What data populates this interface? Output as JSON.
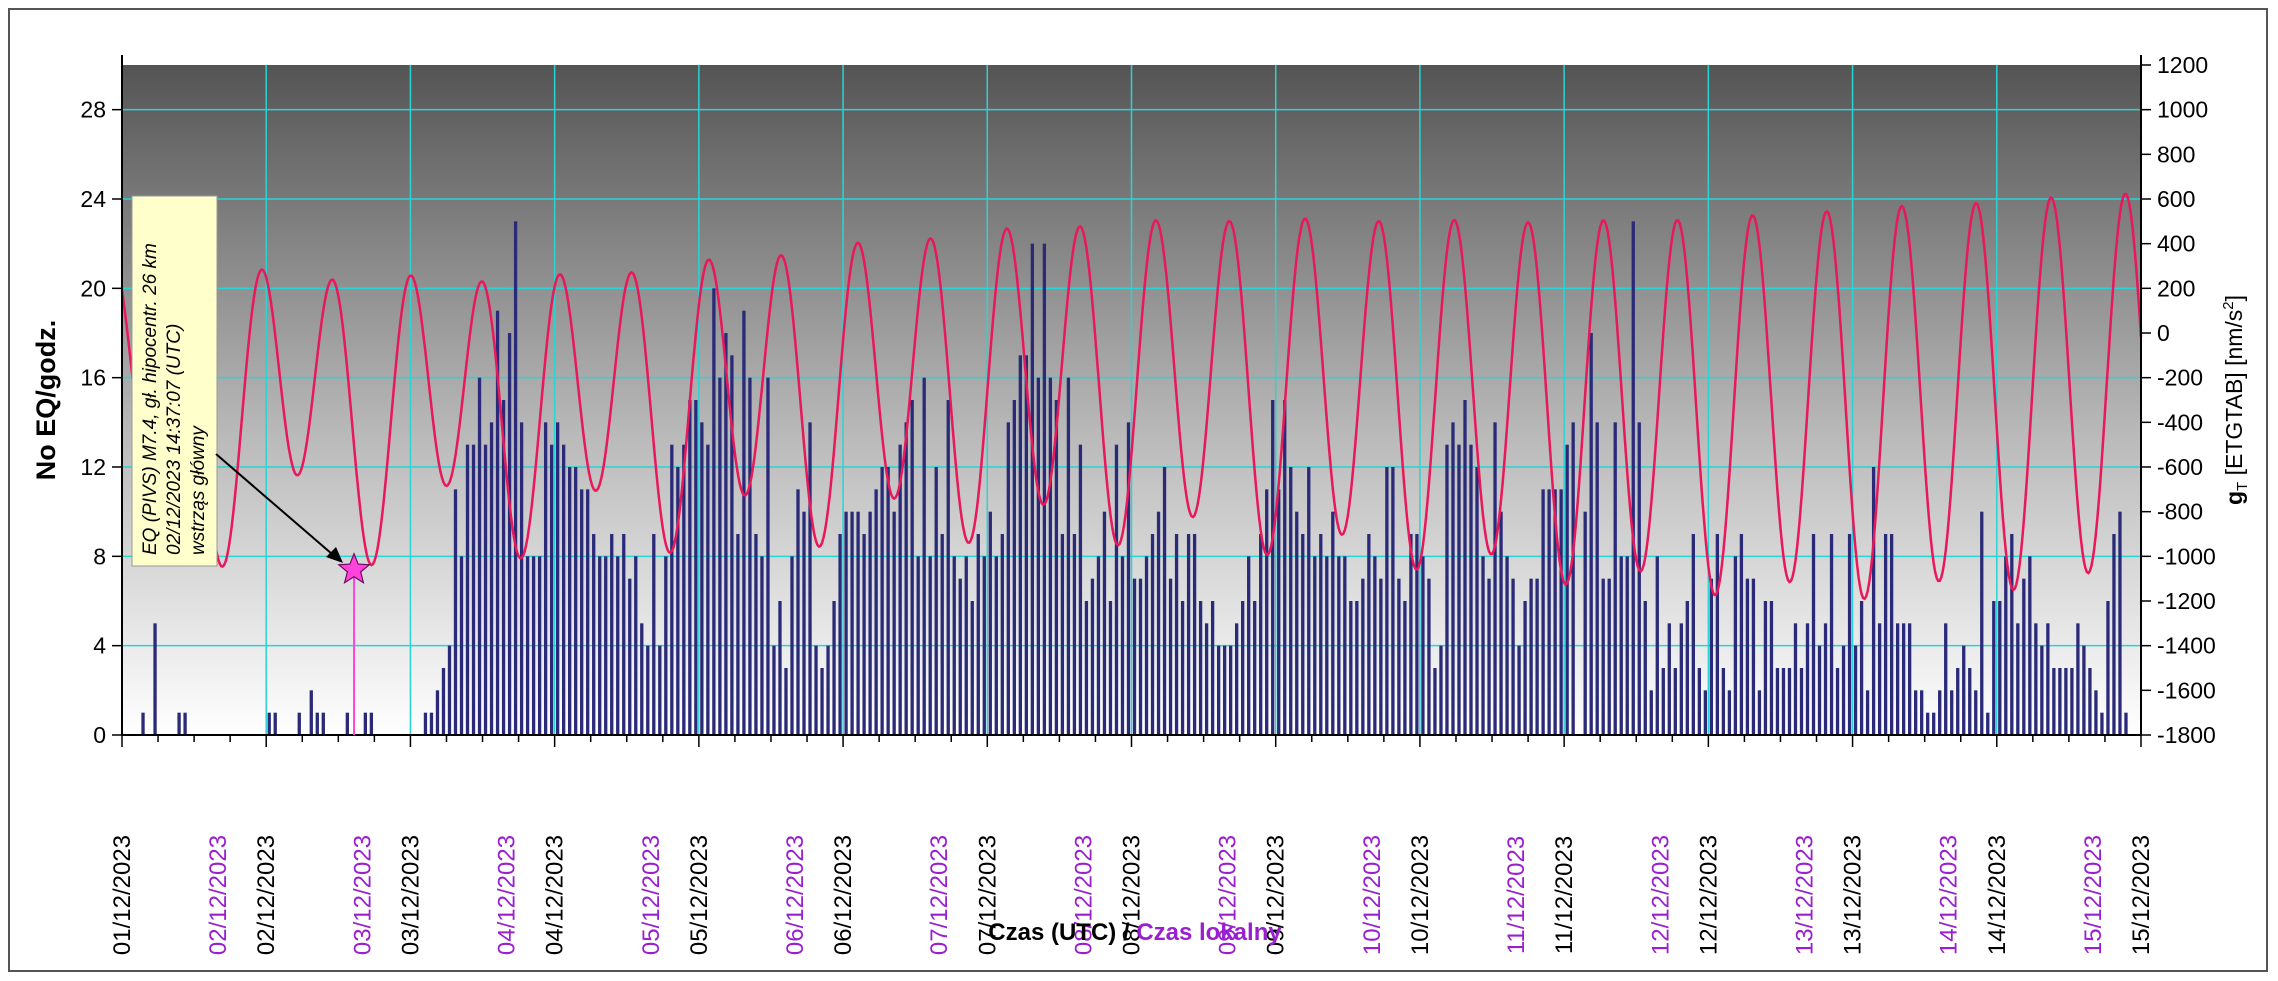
{
  "chart_data": {
    "type": "bar+line",
    "title": "",
    "ylabel_left": "No EQ/godz.",
    "ylabel_right_main": "g",
    "ylabel_right_sub": "T",
    "ylabel_right_rest": " [ETGTAB] [nm/s",
    "ylabel_right_sup": "2",
    "ylabel_right_end": "]",
    "xlabel_part1": "Czas (UTC)",
    "xlabel_sep": " / ",
    "xlabel_part2": "Czas lokalny",
    "ylim_left": [
      0,
      30
    ],
    "ylim_right": [
      -1800,
      1200
    ],
    "left_ticks": [
      0,
      4,
      8,
      12,
      16,
      20,
      24,
      28
    ],
    "right_ticks": [
      -1800,
      -1600,
      -1400,
      -1200,
      -1000,
      -800,
      -600,
      -400,
      -200,
      0,
      200,
      400,
      600,
      800,
      1000,
      1200
    ],
    "utc_dates": [
      "01/12/2023",
      "02/12/2023",
      "03/12/2023",
      "04/12/2023",
      "05/12/2023",
      "06/12/2023",
      "07/12/2023",
      "08/12/2023",
      "09/12/2023",
      "10/12/2023",
      "11/12/2023",
      "12/12/2023",
      "13/12/2023",
      "14/12/2023",
      "15/12/2023"
    ],
    "local_dates": [
      "02/12/2023",
      "03/12/2023",
      "04/12/2023",
      "05/12/2023",
      "06/12/2023",
      "07/12/2023",
      "08/12/2023",
      "09/12/2023",
      "10/12/2023",
      "11/12/2023",
      "12/12/2023",
      "13/12/2023",
      "14/12/2023",
      "15/12/2023"
    ],
    "local_offset_hours": -8,
    "hourly_counts_start": "01/12/2023 00:00 UTC",
    "hourly_counts": [
      0,
      0,
      0,
      1,
      0,
      5,
      0,
      0,
      0,
      1,
      1,
      0,
      0,
      0,
      0,
      0,
      0,
      0,
      0,
      0,
      0,
      0,
      0,
      0,
      1,
      1,
      0,
      0,
      0,
      1,
      0,
      2,
      1,
      1,
      0,
      0,
      0,
      1,
      0,
      0,
      1,
      1,
      0,
      0,
      0,
      0,
      0,
      0,
      0,
      0,
      1,
      1,
      2,
      3,
      4,
      11,
      8,
      13,
      13,
      16,
      13,
      14,
      19,
      15,
      18,
      23,
      14,
      8,
      8,
      8,
      14,
      13,
      14,
      13,
      12,
      12,
      11,
      11,
      9,
      8,
      8,
      9,
      8,
      9,
      7,
      8,
      5,
      4,
      9,
      4,
      8,
      13,
      12,
      13,
      15,
      15,
      14,
      13,
      20,
      16,
      18,
      17,
      9,
      19,
      16,
      9,
      8,
      16,
      4,
      6,
      3,
      8,
      11,
      10,
      14,
      4,
      3,
      4,
      6,
      9,
      10,
      10,
      10,
      9,
      10,
      11,
      12,
      12,
      10,
      13,
      14,
      15,
      8,
      16,
      8,
      12,
      9,
      15,
      8,
      7,
      8,
      6,
      9,
      8,
      10,
      8,
      9,
      14,
      15,
      17,
      17,
      22,
      16,
      22,
      16,
      15,
      9,
      16,
      9,
      13,
      6,
      7,
      8,
      10,
      6,
      13,
      8,
      14,
      7,
      7,
      8,
      9,
      10,
      12,
      7,
      9,
      6,
      9,
      9,
      6,
      5,
      6,
      4,
      4,
      4,
      5,
      6,
      8,
      6,
      9,
      11,
      15,
      11,
      15,
      12,
      10,
      9,
      12,
      8,
      9,
      8,
      10,
      8,
      8,
      6,
      6,
      7,
      9,
      8,
      7,
      12,
      12,
      7,
      6,
      9,
      9,
      8,
      7,
      3,
      4,
      13,
      14,
      13,
      15,
      13,
      12,
      8,
      7,
      14,
      10,
      8,
      7,
      4,
      6,
      7,
      7,
      11,
      11,
      11,
      11,
      13,
      14,
      0,
      10,
      18,
      14,
      7,
      7,
      14,
      8,
      8,
      23,
      14,
      6,
      2,
      8,
      3,
      5,
      3,
      5,
      6,
      9,
      3,
      2,
      7,
      9,
      3,
      2,
      8,
      9,
      7,
      7,
      2,
      6,
      6,
      3,
      3,
      3,
      5,
      3,
      5,
      9,
      4,
      5,
      9,
      3,
      4,
      9,
      4,
      6,
      2,
      12,
      5,
      9,
      9,
      5,
      5,
      5,
      2,
      2,
      1,
      1,
      2,
      5,
      2,
      3,
      4,
      3,
      2,
      10,
      1,
      6,
      6,
      8,
      9,
      5,
      7,
      8,
      5,
      4,
      5,
      3,
      3,
      3,
      3,
      5,
      4,
      3,
      2,
      1,
      6,
      9,
      10,
      1,
      0,
      0,
      0,
      0,
      0,
      0,
      0,
      0,
      0,
      0,
      0,
      0,
      0,
      0
    ],
    "tide_series_name": "",
    "tide_model": "fitted semi-diurnal curve (nm/s²), sampled hourly; extrema approx: 02/12 00:00 -1100, 02/12 04:00 450, 02/12 10:00 -500, 02/12 16:00 330, 03/12 00:00 300, 04/12 -800..170, 05/12 +80..+230, 06/12 70..380, 07/12 -860..400, 08/12 -1000..520, 09/12 -1200..650, 10/12 -1400..800, 11/12 -1550..920, 12/12 -1600..1010, 13/12 -1650..1050, 14/12 -1600..1020, 15/12 -1600..960",
    "event_marker": {
      "time": "02/12/2023 14:37:07 UTC",
      "value": 7.4,
      "color": "#ff44dd"
    },
    "annotation_lines": [
      "EQ (PIVS) M7.4, gł. hipocentr. 26 km",
      "02/12/2023 14:37:07 (UTC)",
      "wstrząs główny"
    ],
    "colors": {
      "bars": "#2a2a78",
      "tide_line": "#e8185a",
      "grid": "#28d4d4",
      "local_date": "#9a1fcf",
      "bg_top": "#585858",
      "bg_bottom": "#ffffff"
    }
  }
}
